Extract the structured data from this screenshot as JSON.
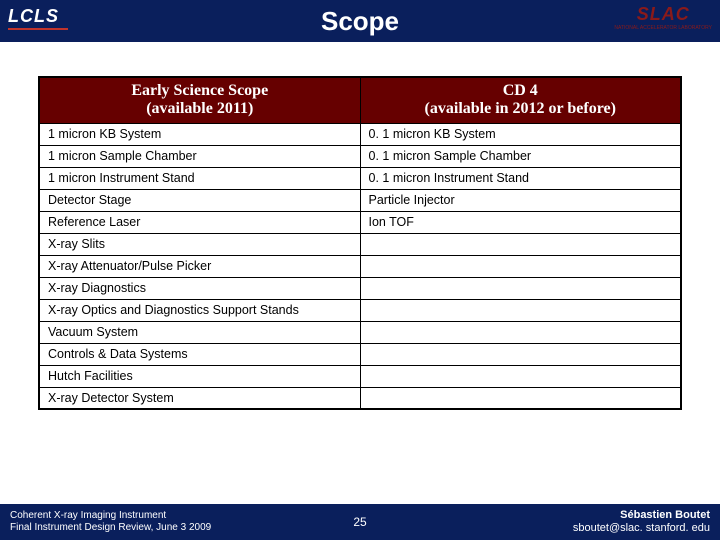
{
  "header": {
    "logo_left": "LCLS",
    "title": "Scope",
    "logo_right": "SLAC",
    "logo_right_sub": "NATIONAL ACCELERATOR LABORATORY"
  },
  "table": {
    "col1_header_line1": "Early Science Scope",
    "col1_header_line2": "(available 2011)",
    "col2_header_line1": "CD 4",
    "col2_header_line2": "(available in 2012 or before)",
    "rows": [
      {
        "c1": "1 micron KB System",
        "c2": "0. 1 micron KB System"
      },
      {
        "c1": "1 micron Sample Chamber",
        "c2": "0. 1 micron Sample Chamber"
      },
      {
        "c1": "1 micron Instrument Stand",
        "c2": "0. 1 micron Instrument Stand"
      },
      {
        "c1": "Detector Stage",
        "c2": "Particle Injector"
      },
      {
        "c1": "Reference Laser",
        "c2": "Ion TOF"
      },
      {
        "c1": "X-ray Slits",
        "c2": ""
      },
      {
        "c1": "X-ray Attenuator/Pulse Picker",
        "c2": ""
      },
      {
        "c1": "X-ray Diagnostics",
        "c2": ""
      },
      {
        "c1": "X-ray Optics and Diagnostics Support Stands",
        "c2": ""
      },
      {
        "c1": "Vacuum System",
        "c2": ""
      },
      {
        "c1": "Controls & Data Systems",
        "c2": ""
      },
      {
        "c1": "Hutch Facilities",
        "c2": ""
      },
      {
        "c1": "X-ray Detector System",
        "c2": ""
      }
    ]
  },
  "footer": {
    "left_line1": "Coherent X-ray Imaging Instrument",
    "left_line2": "Final Instrument Design Review, June 3 2009",
    "page": "25",
    "author": "Sébastien Boutet",
    "email": "sboutet@slac. stanford. edu"
  },
  "colors": {
    "header_bg": "#0a1f5c",
    "table_header_bg": "#660000",
    "slac_red": "#8b1a1a",
    "lcls_underline": "#c0342c"
  }
}
